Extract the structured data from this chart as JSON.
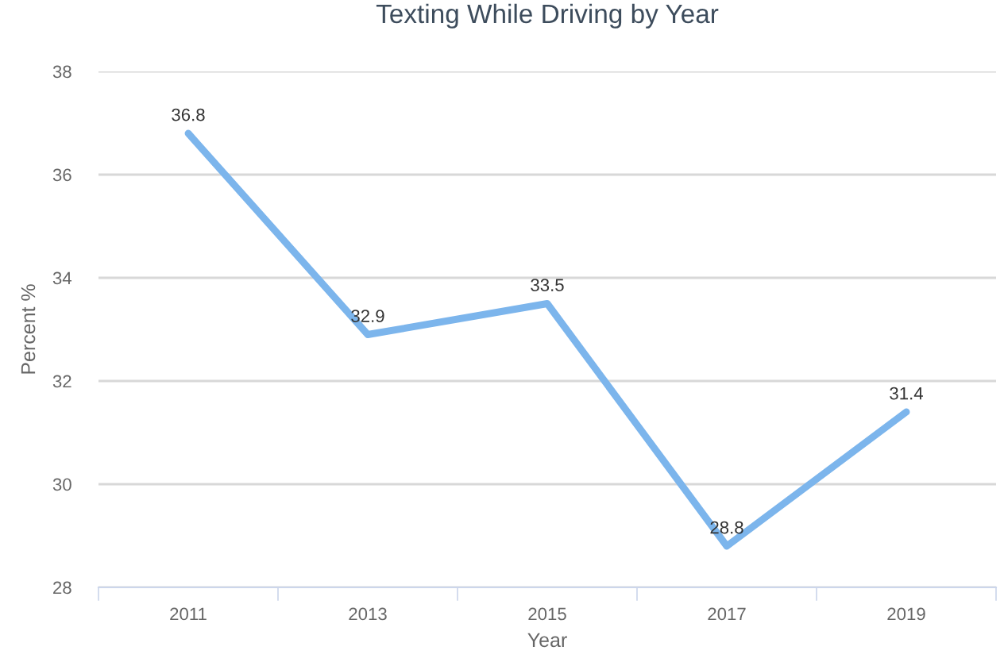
{
  "chart_data": {
    "type": "line",
    "title": "Texting While Driving by Year",
    "xlabel": "Year",
    "ylabel": "Percent %",
    "categories": [
      "2011",
      "2013",
      "2015",
      "2017",
      "2019"
    ],
    "series": [
      {
        "color": "#7cb5ec",
        "values": [
          36.8,
          32.9,
          33.5,
          28.8,
          31.4
        ]
      }
    ],
    "ylim": [
      28,
      38
    ],
    "yticks": [
      28,
      30,
      32,
      34,
      36,
      38
    ],
    "grid": "y",
    "marker": "none",
    "line_style": "solid",
    "data_labels": true
  }
}
